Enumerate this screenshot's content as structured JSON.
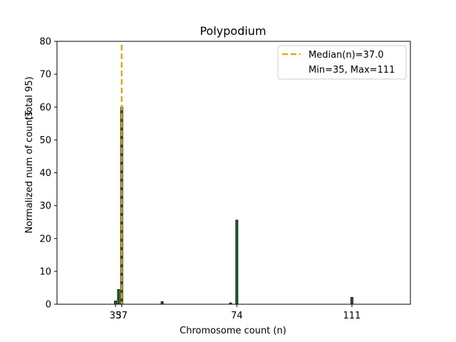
{
  "chart_data": {
    "type": "bar",
    "title": "Polypodium",
    "xlabel": "Chromosome count (n)",
    "ylabel_main": "Normalized num of counts",
    "ylabel_total": "(Total 95)",
    "xlim": [
      16.2,
      129.8
    ],
    "ylim": [
      0,
      80
    ],
    "yticks": [
      0,
      10,
      20,
      30,
      40,
      50,
      60,
      70,
      80
    ],
    "xticks": [
      35,
      37,
      74,
      111
    ],
    "bar_color": "#1f6b1f",
    "bar_edge": "#000000",
    "bars": [
      {
        "x": 35,
        "y": 1.0
      },
      {
        "x": 36,
        "y": 4.5
      },
      {
        "x": 37,
        "y": 60.0
      },
      {
        "x": 50,
        "y": 0.8
      },
      {
        "x": 72,
        "y": 0.4
      },
      {
        "x": 74,
        "y": 25.6
      },
      {
        "x": 111,
        "y": 2.1
      }
    ],
    "median": {
      "x": 37.0,
      "color": "#e6a817",
      "label": "Median(n)=37.0"
    },
    "legend": {
      "position": "top-right",
      "entries": [
        "Median(n)=37.0",
        "Min=35, Max=111"
      ]
    }
  }
}
